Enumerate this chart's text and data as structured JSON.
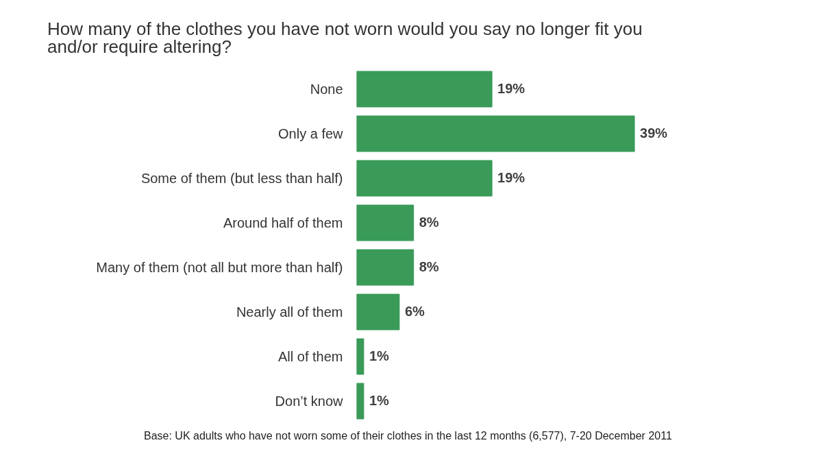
{
  "chart_data": {
    "type": "bar",
    "orientation": "horizontal",
    "title": "How many of the clothes you have not worn would you say no longer fit you\nand/or require altering?",
    "categories": [
      "None",
      "Only a few",
      "Some of them (but less than half)",
      "Around half of them",
      "Many of them (not all but more than half)",
      "Nearly all of them",
      "All of them",
      "Don’t know"
    ],
    "values": [
      19,
      39,
      19,
      8,
      8,
      6,
      1,
      1
    ],
    "value_labels": [
      "19%",
      "39%",
      "19%",
      "8%",
      "8%",
      "6%",
      "1%",
      "1%"
    ],
    "color": "#3a9a58",
    "tick_labels": "y",
    "grid": false,
    "annotations": [
      "Base: UK adults who have not worn some of their clothes in the last 12 months (6,577), 7-20 December 2011"
    ]
  }
}
